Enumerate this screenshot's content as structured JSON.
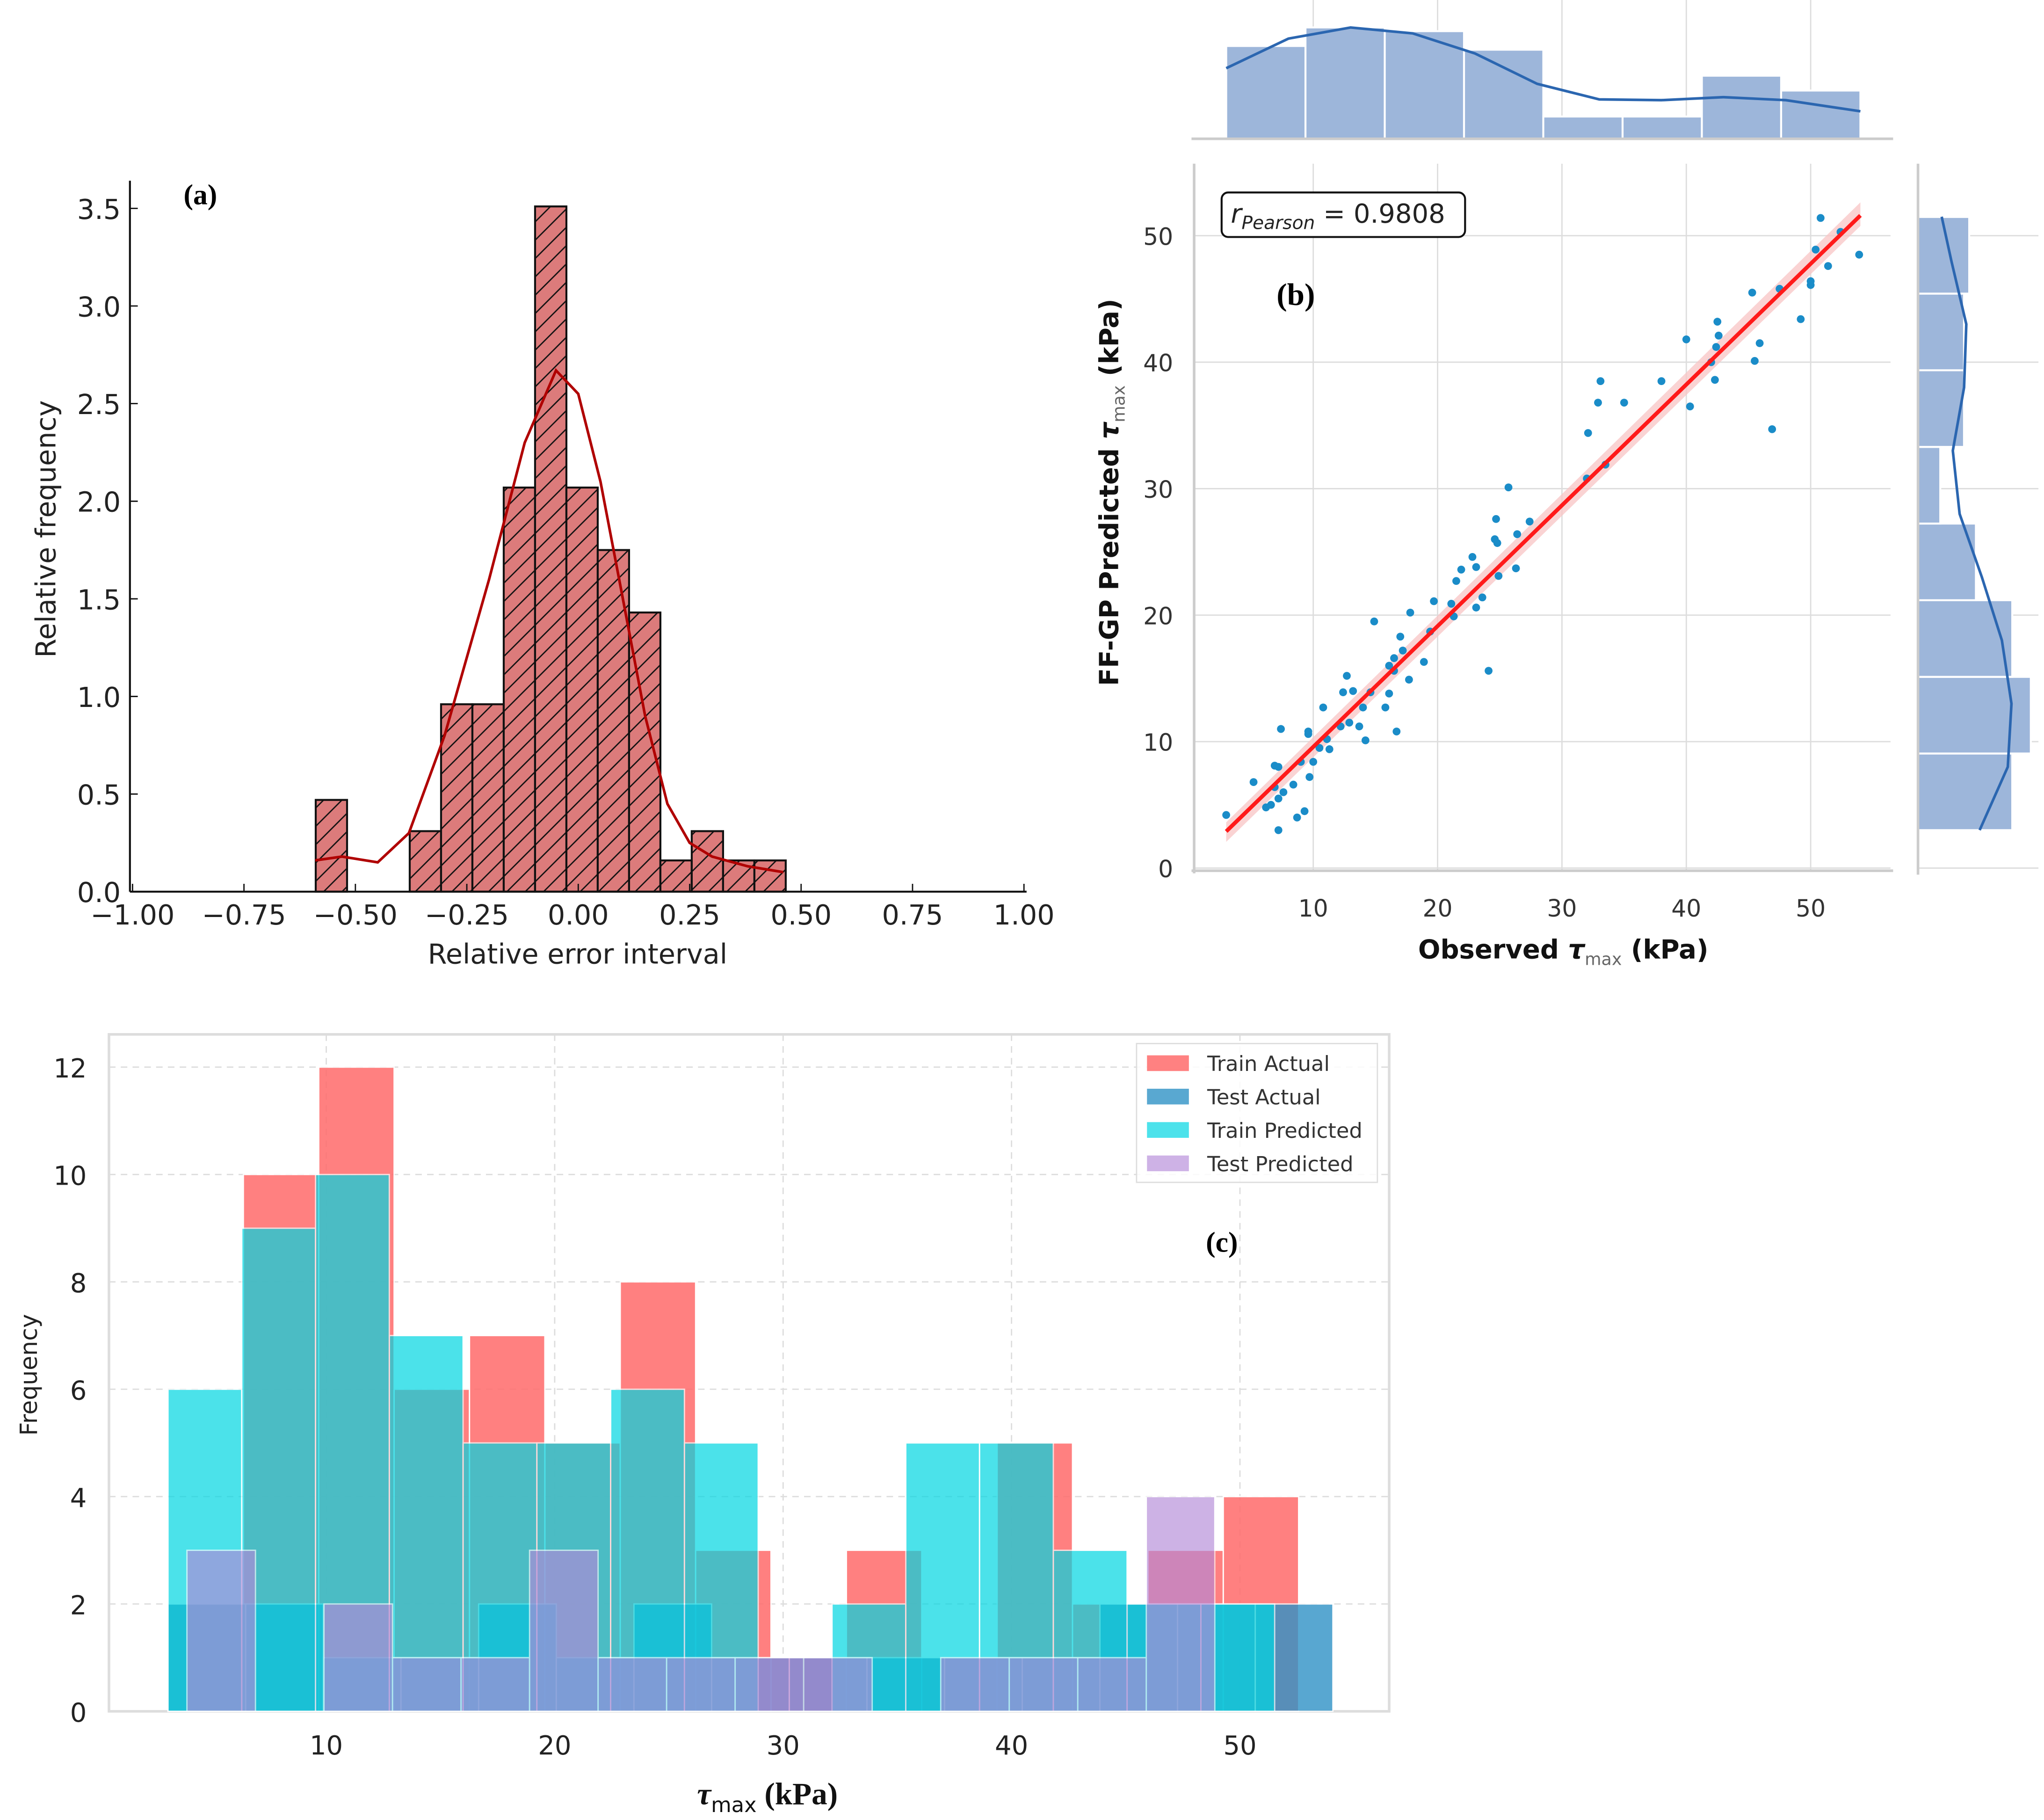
{
  "chart_data": [
    {
      "id": "a",
      "panel_label": "(a)",
      "type": "bar",
      "title": "",
      "xlabel": "Relative error interval",
      "ylabel": "Relative frequency",
      "xlim": [
        -1.0,
        1.0
      ],
      "ylim": [
        0,
        3.65
      ],
      "xticks": [
        "−1.00",
        "−0.75",
        "−0.50",
        "−0.25",
        "0.00",
        "0.25",
        "0.50",
        "0.75",
        "1.00"
      ],
      "xtick_values": [
        -1.0,
        -0.75,
        -0.5,
        -0.25,
        0.0,
        0.25,
        0.5,
        0.75,
        1.0
      ],
      "yticks": [
        "0.0",
        "0.5",
        "1.0",
        "1.5",
        "2.0",
        "2.5",
        "3.0",
        "3.5"
      ],
      "ytick_values": [
        0,
        0.5,
        1.0,
        1.5,
        2.0,
        2.5,
        3.0,
        3.5
      ],
      "bin_edges_start": -0.589,
      "bin_width": 0.0703,
      "values": [
        0.47,
        0,
        0,
        0.31,
        0.96,
        0.96,
        2.07,
        3.51,
        2.07,
        1.75,
        1.43,
        0.16,
        0.31,
        0.16,
        0.16
      ],
      "kde": {
        "x": [
          -0.59,
          -0.53,
          -0.45,
          -0.38,
          -0.3,
          -0.2,
          -0.12,
          -0.05,
          0.0,
          0.05,
          0.1,
          0.15,
          0.2,
          0.25,
          0.3,
          0.38,
          0.46
        ],
        "y": [
          0.16,
          0.18,
          0.15,
          0.3,
          0.8,
          1.6,
          2.3,
          2.67,
          2.55,
          2.1,
          1.5,
          0.9,
          0.45,
          0.25,
          0.18,
          0.13,
          0.1
        ]
      },
      "colors": {
        "bar": "#dc7b7b",
        "edge": "#111111",
        "kde": "#b00000"
      },
      "hatch": "/"
    },
    {
      "id": "b",
      "panel_label": "(b)",
      "type": "scatter",
      "xlabel_parts": [
        "Observed ",
        "τ",
        "max",
        " (kPa)"
      ],
      "ylabel_parts": [
        "FF-GP Predicted ",
        "τ",
        "max",
        " (kPa)"
      ],
      "xlim": [
        0.4,
        56.4
      ],
      "ylim": [
        -0.2,
        55.7
      ],
      "xticks": [
        "10",
        "20",
        "30",
        "40",
        "50"
      ],
      "xtick_values": [
        10,
        20,
        30,
        40,
        50
      ],
      "yticks": [
        "0",
        "10",
        "20",
        "30",
        "40",
        "50"
      ],
      "ytick_values": [
        0,
        10,
        20,
        30,
        40,
        50
      ],
      "annotation": {
        "r": "r",
        "sub": "Pearson",
        "value": " = 0.9808"
      },
      "points": [
        [
          3.0,
          4.2
        ],
        [
          5.2,
          6.8
        ],
        [
          6.9,
          8.1
        ],
        [
          7.2,
          8.0
        ],
        [
          7.4,
          11.0
        ],
        [
          6.9,
          6.4
        ],
        [
          6.2,
          4.8
        ],
        [
          6.6,
          5.0
        ],
        [
          7.2,
          5.5
        ],
        [
          7.6,
          6.0
        ],
        [
          7.2,
          3.0
        ],
        [
          8.4,
          6.6
        ],
        [
          8.7,
          4.0
        ],
        [
          9.3,
          4.5
        ],
        [
          9.0,
          8.4
        ],
        [
          9.6,
          10.8
        ],
        [
          9.6,
          10.6
        ],
        [
          9.7,
          7.2
        ],
        [
          10.0,
          8.4
        ],
        [
          10.5,
          9.5
        ],
        [
          10.8,
          12.7
        ],
        [
          11.1,
          10.2
        ],
        [
          11.3,
          9.4
        ],
        [
          12.2,
          11.2
        ],
        [
          12.4,
          13.9
        ],
        [
          12.7,
          15.2
        ],
        [
          12.9,
          11.5
        ],
        [
          13.2,
          14.0
        ],
        [
          13.7,
          11.2
        ],
        [
          14.0,
          12.7
        ],
        [
          14.2,
          10.1
        ],
        [
          14.6,
          13.9
        ],
        [
          14.9,
          19.5
        ],
        [
          15.8,
          12.7
        ],
        [
          16.1,
          13.8
        ],
        [
          16.1,
          16.0
        ],
        [
          16.5,
          16.6
        ],
        [
          16.5,
          15.6
        ],
        [
          16.7,
          10.8
        ],
        [
          17.0,
          18.3
        ],
        [
          17.2,
          17.2
        ],
        [
          17.7,
          14.9
        ],
        [
          17.8,
          20.2
        ],
        [
          18.9,
          16.3
        ],
        [
          19.4,
          18.7
        ],
        [
          19.7,
          21.1
        ],
        [
          21.1,
          20.9
        ],
        [
          21.3,
          19.9
        ],
        [
          21.5,
          22.7
        ],
        [
          21.9,
          23.6
        ],
        [
          22.8,
          24.6
        ],
        [
          23.1,
          20.6
        ],
        [
          23.1,
          23.8
        ],
        [
          23.6,
          21.4
        ],
        [
          24.1,
          15.6
        ],
        [
          24.7,
          27.6
        ],
        [
          24.6,
          26.0
        ],
        [
          24.8,
          25.7
        ],
        [
          24.9,
          23.1
        ],
        [
          25.7,
          30.1
        ],
        [
          26.4,
          26.4
        ],
        [
          26.3,
          23.7
        ],
        [
          27.4,
          27.4
        ],
        [
          32.1,
          34.4
        ],
        [
          32.0,
          30.8
        ],
        [
          32.9,
          36.8
        ],
        [
          33.1,
          38.5
        ],
        [
          33.5,
          31.9
        ],
        [
          35.0,
          36.8
        ],
        [
          38.0,
          38.5
        ],
        [
          40.0,
          41.8
        ],
        [
          40.3,
          36.5
        ],
        [
          42.0,
          40.0
        ],
        [
          42.3,
          38.6
        ],
        [
          42.4,
          41.2
        ],
        [
          42.6,
          42.1
        ],
        [
          42.5,
          43.2
        ],
        [
          45.3,
          45.5
        ],
        [
          45.5,
          40.1
        ],
        [
          45.9,
          41.5
        ],
        [
          46.9,
          34.7
        ],
        [
          47.5,
          45.8
        ],
        [
          49.2,
          43.4
        ],
        [
          50.0,
          46.1
        ],
        [
          50.0,
          46.4
        ],
        [
          50.4,
          48.9
        ],
        [
          50.8,
          51.4
        ],
        [
          51.4,
          47.6
        ],
        [
          52.4,
          50.3
        ],
        [
          53.9,
          48.5
        ]
      ],
      "regression": {
        "x": [
          3.0,
          54.0
        ],
        "y": [
          2.9,
          51.6
        ]
      },
      "marginal_x": {
        "edges_start": 3.0,
        "bin_width": 6.375,
        "counts": [
          12.5,
          15,
          14.5,
          12,
          3,
          3,
          8.5,
          6.5
        ],
        "kde_x": [
          3,
          8,
          13,
          18,
          23,
          28,
          33,
          38,
          43,
          48,
          54
        ],
        "kde_y": [
          9.5,
          13.5,
          15.0,
          14.2,
          11.5,
          7.4,
          5.3,
          5.2,
          5.6,
          5.2,
          3.7
        ]
      },
      "marginal_y": {
        "edges_start": 3.0,
        "bin_width": 6.06,
        "counts": [
          12.7,
          15.2,
          12.7,
          7.8,
          3,
          6.2,
          6.2,
          6.9
        ],
        "kde_y": [
          3,
          8,
          13,
          18,
          23,
          28,
          33,
          38,
          43,
          48,
          51.5
        ],
        "kde_x": [
          8.3,
          12.1,
          12.6,
          11.3,
          8.6,
          5.6,
          4.7,
          6.2,
          6.5,
          4.5,
          3.2
        ]
      },
      "colors": {
        "points": "#1a8cc8",
        "line": "#ff1a1a",
        "band": "#f8c4c4",
        "marginal": "#9db6da",
        "kde": "#2b66b0"
      }
    },
    {
      "id": "c",
      "panel_label": "(c)",
      "type": "bar",
      "xlabel_parts": [
        "τ",
        "max",
        " (kPa)"
      ],
      "ylabel": "Frequency",
      "xlim": [
        0.5,
        56.5
      ],
      "ylim": [
        0,
        12.6
      ],
      "xticks": [
        "10",
        "20",
        "30",
        "40",
        "50"
      ],
      "xtick_values": [
        10,
        20,
        30,
        40,
        50
      ],
      "yticks": [
        "0",
        "2",
        "4",
        "6",
        "8",
        "10",
        "12"
      ],
      "ytick_values": [
        0,
        2,
        4,
        6,
        8,
        10,
        12
      ],
      "series": [
        {
          "name": "Train Actual",
          "color": "#ff6f6f",
          "opacity": 0.88,
          "edges_start": 3.07,
          "bin_width": 3.3,
          "values": [
            2,
            10,
            12,
            6,
            7,
            5,
            8,
            3,
            1,
            3,
            1,
            5,
            2,
            3,
            4
          ]
        },
        {
          "name": "Test Actual",
          "color": "#2f92c6",
          "opacity": 0.8,
          "edges_start": 3.07,
          "bin_width": 3.4,
          "values": [
            2,
            2,
            1,
            1,
            2,
            1,
            2,
            1,
            1,
            1,
            1,
            1,
            2,
            2,
            2
          ]
        },
        {
          "name": "Train Predicted",
          "color": "#00d6e2",
          "opacity": 0.7,
          "edges_start": 3.07,
          "bin_width": 3.23,
          "values": [
            6,
            9,
            10,
            7,
            5,
            5,
            6,
            5,
            0,
            2,
            5,
            5,
            3,
            2,
            2
          ]
        },
        {
          "name": "Test Predicted",
          "color": "#b389d8",
          "opacity": 0.65,
          "edges_start": 3.9,
          "bin_width": 3.0,
          "values": [
            3,
            0,
            2,
            1,
            1,
            3,
            1,
            1,
            1,
            1,
            0,
            1,
            1,
            1,
            4
          ]
        }
      ],
      "legend_position": "top-right"
    }
  ]
}
